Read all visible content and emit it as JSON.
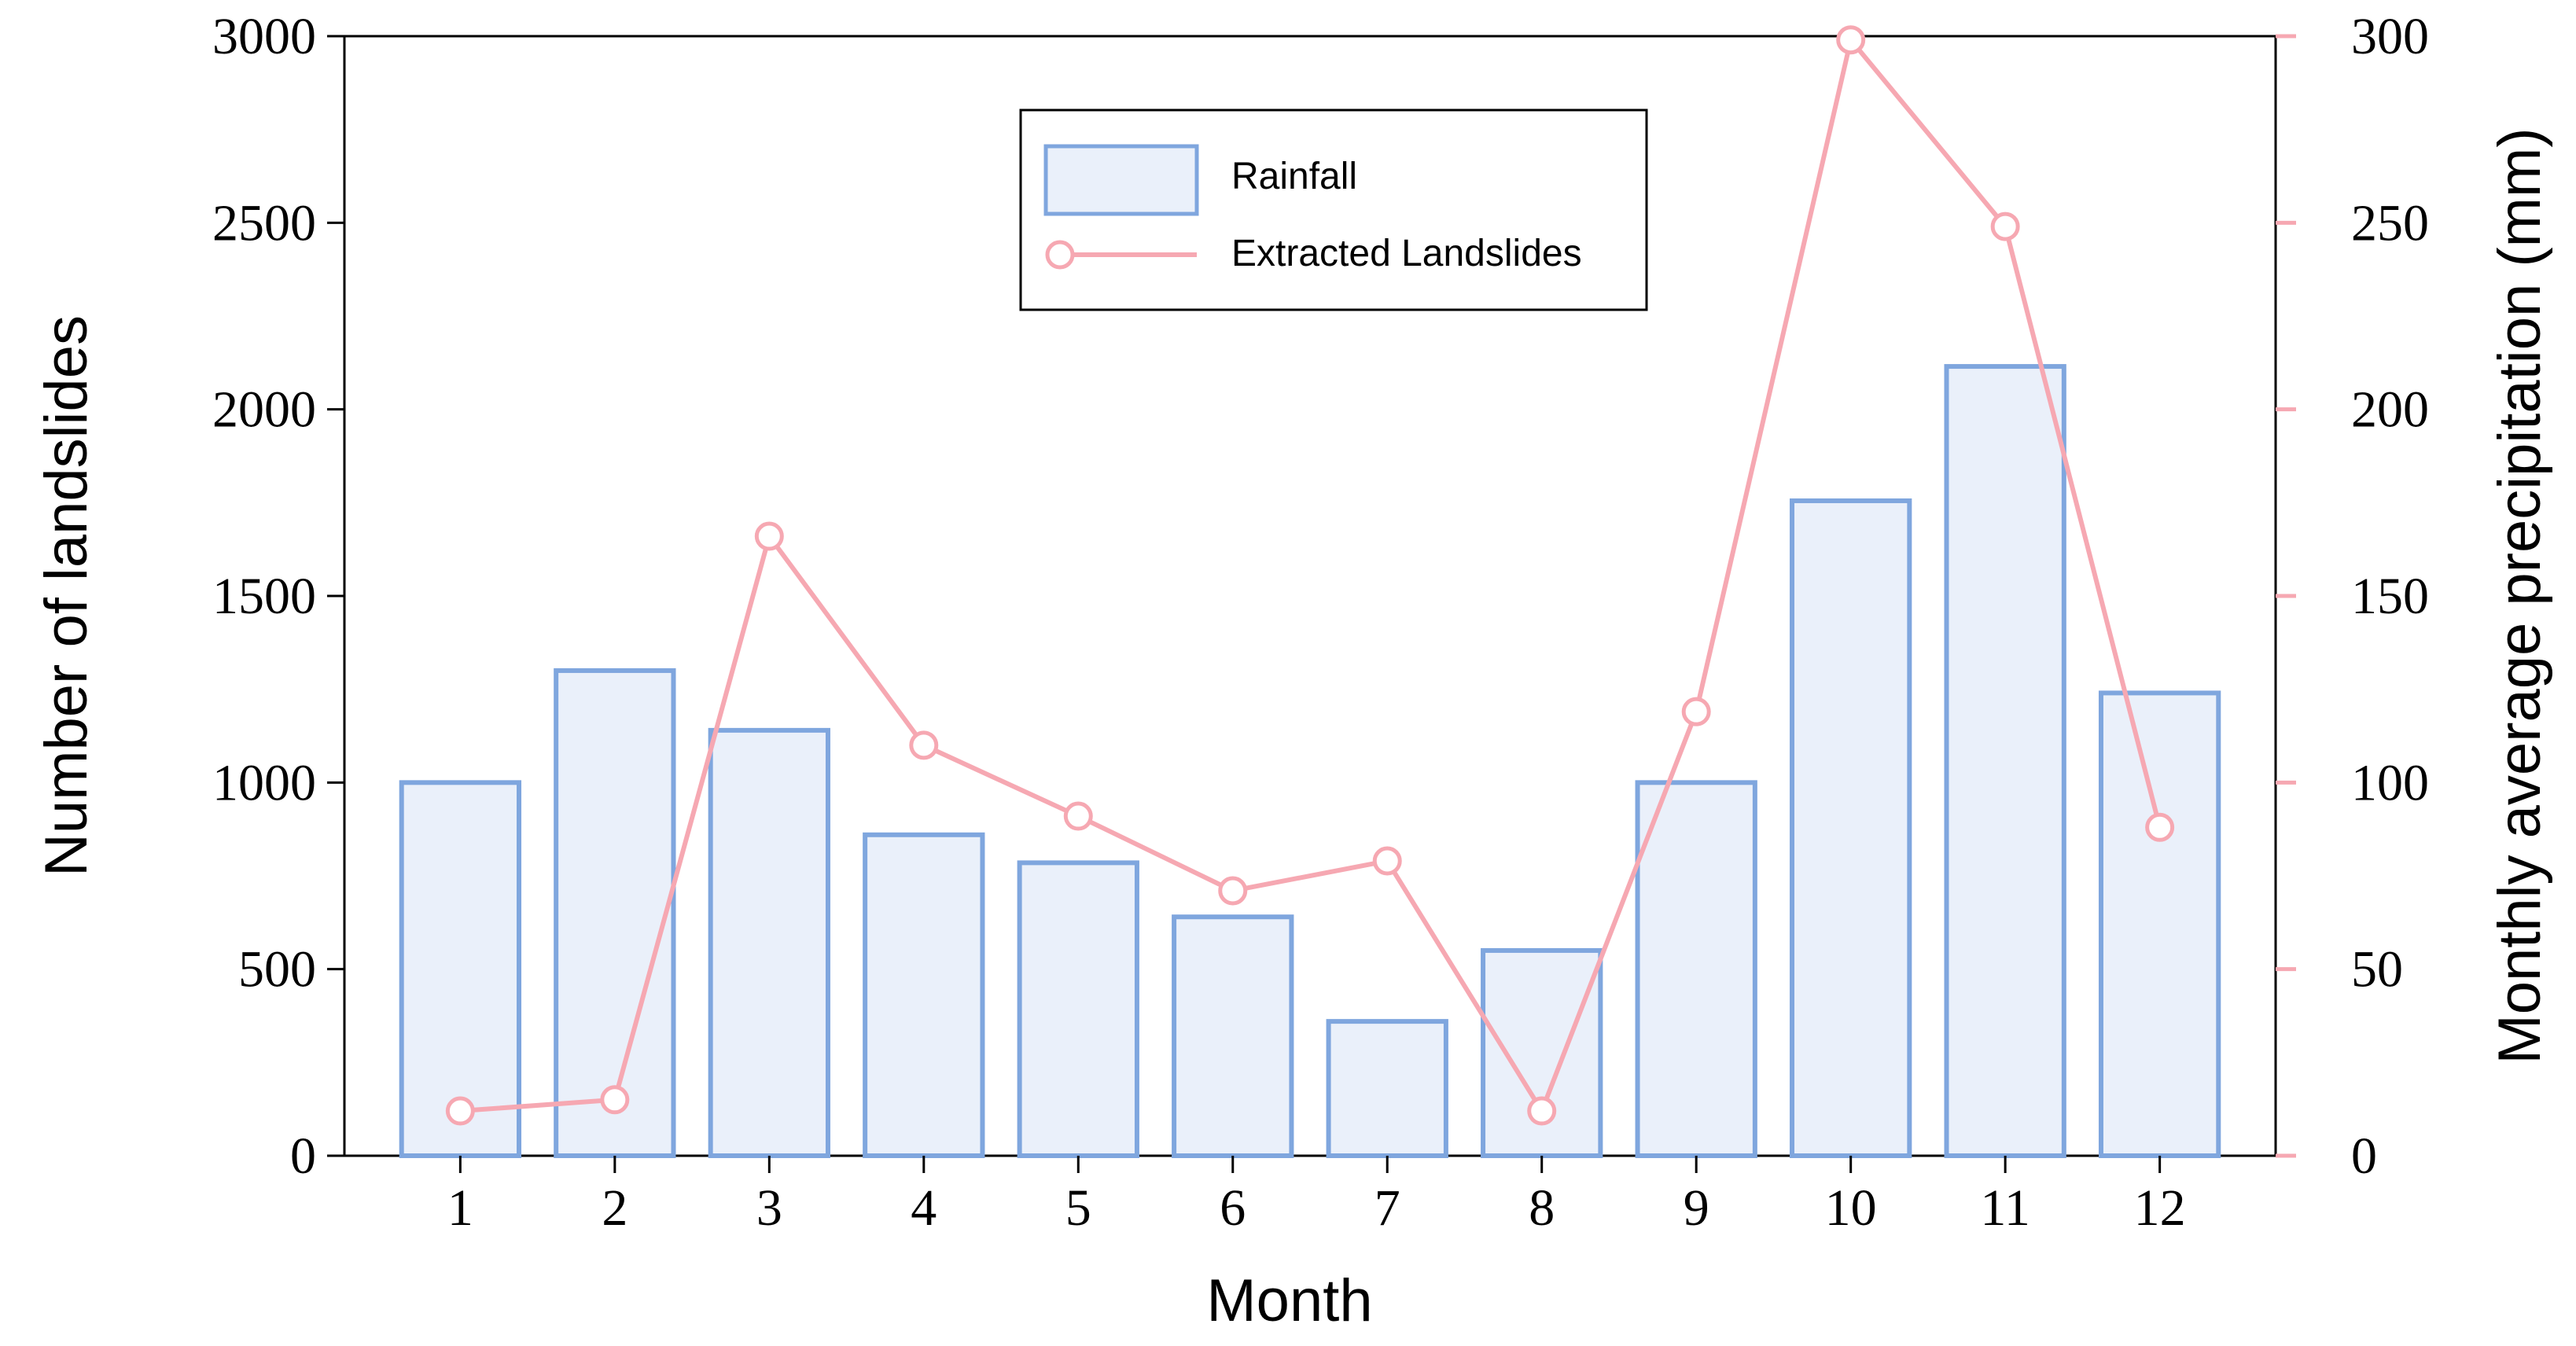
{
  "chart_data": {
    "type": "bar+line",
    "categories": [
      "1",
      "2",
      "3",
      "4",
      "5",
      "6",
      "7",
      "8",
      "9",
      "10",
      "11",
      "12"
    ],
    "series": [
      {
        "name": "Rainfall",
        "type": "bar",
        "axis": "left",
        "values": [
          1000,
          1300,
          1140,
          860,
          785,
          640,
          360,
          550,
          1000,
          1755,
          2115,
          1240
        ]
      },
      {
        "name": "Extracted Landslides",
        "type": "line",
        "axis": "right",
        "values": [
          12,
          15,
          166,
          110,
          91,
          71,
          79,
          12,
          119,
          299,
          249,
          88
        ]
      }
    ],
    "xlabel": "Month",
    "ylabel": "Number of landslides",
    "y2label": "Monthly average precipitation (mm)",
    "ylim": [
      0,
      3000
    ],
    "y2lim": [
      0,
      300
    ],
    "yticks": [
      0,
      500,
      1000,
      1500,
      2000,
      2500,
      3000
    ],
    "y2ticks": [
      0,
      50,
      100,
      150,
      200,
      250,
      300
    ],
    "legend": {
      "position": "top-center",
      "entries": [
        "Rainfall",
        "Extracted Landslides"
      ]
    },
    "grid": false
  },
  "colors": {
    "bar_fill": "#eaf0fa",
    "bar_stroke": "#7fa6de",
    "line": "#f6a8b2",
    "marker_fill": "#ffffff",
    "axis": "#000000"
  }
}
